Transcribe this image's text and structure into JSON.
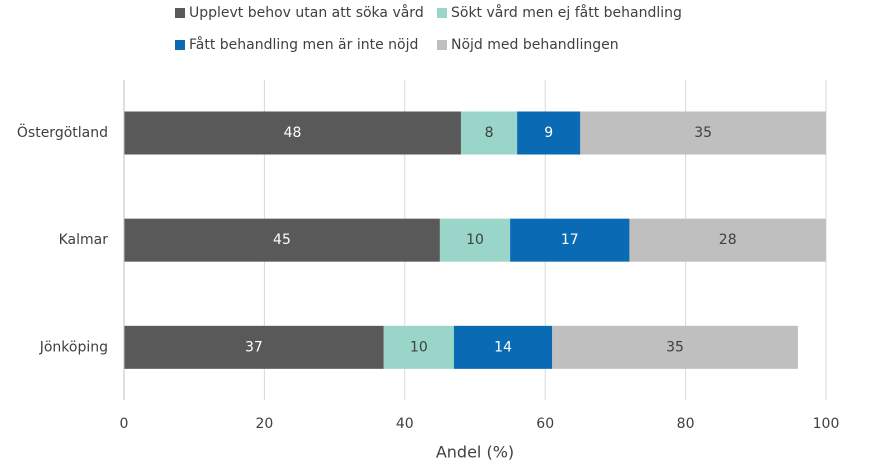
{
  "chart_data": {
    "type": "stacked-bar-horizontal",
    "x_label": "Andel (%)",
    "categories": [
      "Östergötland",
      "Kalmar",
      "Jönköping"
    ],
    "series": [
      {
        "name": "Upplevt behov utan att söka vård",
        "color": "#595959",
        "values": [
          48,
          45,
          37
        ]
      },
      {
        "name": "Sökt vård men ej fått behandling",
        "color": "#99d5c9",
        "values": [
          8,
          10,
          10
        ]
      },
      {
        "name": "Fått behandling men är inte nöjd",
        "color": "#0a6ab4",
        "values": [
          9,
          17,
          14
        ]
      },
      {
        "name": "Nöjd med behandlingen",
        "color": "#bfbfbf",
        "values": [
          35,
          28,
          35
        ]
      }
    ],
    "xlim": [
      0,
      100
    ],
    "xticks": [
      0,
      20,
      40,
      60,
      80,
      100
    ],
    "grid": true
  }
}
